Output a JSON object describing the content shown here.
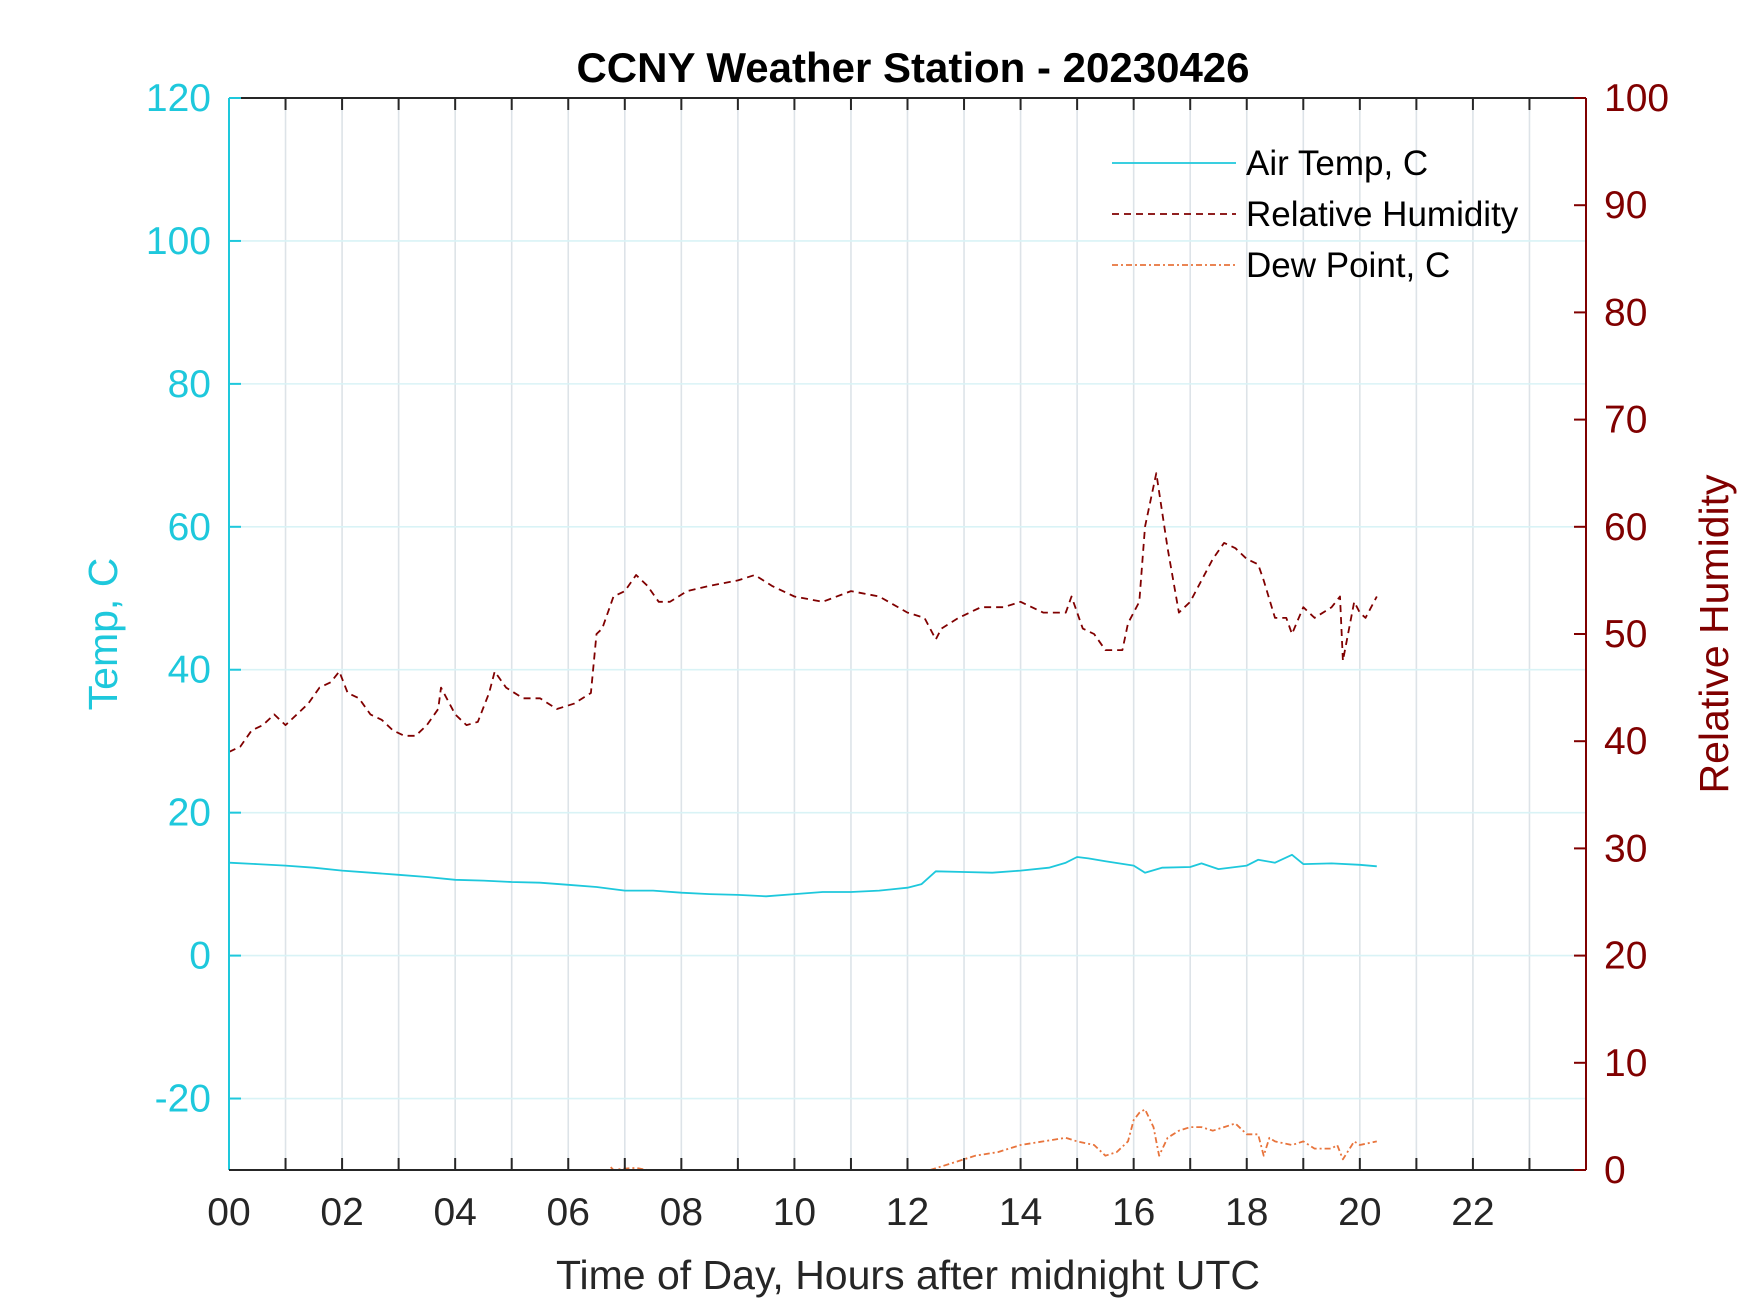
{
  "chart_data": {
    "type": "line",
    "title": "CCNY Weather Station - 20230426",
    "xlabel": "Time of Day, Hours after midnight UTC",
    "ylabel_left": "Temp, C",
    "ylabel_right": "Relative Humidity",
    "xlim": [
      0,
      24
    ],
    "ylim_left": [
      -30,
      120
    ],
    "ylim_right": [
      0,
      100
    ],
    "x_ticks": [
      0,
      2,
      4,
      6,
      8,
      10,
      12,
      14,
      16,
      18,
      20,
      22
    ],
    "x_tick_labels": [
      "00",
      "02",
      "04",
      "06",
      "08",
      "10",
      "12",
      "14",
      "16",
      "18",
      "20",
      "22"
    ],
    "y_left_ticks": [
      -20,
      0,
      20,
      40,
      60,
      80,
      100,
      120
    ],
    "y_left_tick_labels": [
      "-20",
      "0",
      "20",
      "40",
      "60",
      "80",
      "100",
      "120"
    ],
    "y_right_ticks": [
      0,
      10,
      20,
      30,
      40,
      50,
      60,
      70,
      80,
      90,
      100
    ],
    "y_right_tick_labels": [
      "0",
      "10",
      "20",
      "30",
      "40",
      "50",
      "60",
      "70",
      "80",
      "90",
      "100"
    ],
    "grid": true,
    "legend_position": "top-right",
    "colors": {
      "left_axis": "#1ec8dc",
      "right_axis": "#800000",
      "air_temp": "#1ec8dc",
      "humidity": "#800000",
      "dew_point": "#e8743c"
    },
    "series": [
      {
        "name": "Air Temp, C",
        "axis": "left",
        "style": "solid",
        "x": [
          0,
          0.5,
          1,
          1.5,
          2,
          2.5,
          3,
          3.5,
          4,
          4.5,
          5,
          5.5,
          6,
          6.5,
          7,
          7.5,
          8,
          8.5,
          9,
          9.5,
          10,
          10.5,
          11,
          11.5,
          12,
          12.25,
          12.5,
          13,
          13.5,
          14,
          14.5,
          14.8,
          15,
          15.2,
          15.5,
          16,
          16.2,
          16.5,
          17,
          17.2,
          17.5,
          18,
          18.2,
          18.5,
          18.8,
          19,
          19.5,
          20,
          20.3
        ],
        "values": [
          13,
          12.8,
          12.6,
          12.3,
          11.9,
          11.6,
          11.3,
          11,
          10.6,
          10.5,
          10.3,
          10.2,
          9.9,
          9.6,
          9.1,
          9.1,
          8.8,
          8.6,
          8.5,
          8.3,
          8.6,
          8.9,
          8.9,
          9.1,
          9.5,
          10,
          11.8,
          11.7,
          11.6,
          11.9,
          12.3,
          13,
          13.8,
          13.6,
          13.2,
          12.6,
          11.6,
          12.3,
          12.4,
          12.9,
          12.1,
          12.6,
          13.4,
          13,
          14.1,
          12.8,
          12.9,
          12.7,
          12.5
        ]
      },
      {
        "name": "Relative Humidity",
        "axis": "right",
        "style": "dashed",
        "x": [
          0,
          0.2,
          0.4,
          0.6,
          0.8,
          1,
          1.2,
          1.4,
          1.6,
          1.8,
          1.95,
          2.1,
          2.3,
          2.5,
          2.7,
          2.9,
          3.1,
          3.3,
          3.5,
          3.7,
          3.75,
          3.85,
          4,
          4.2,
          4.4,
          4.6,
          4.7,
          4.9,
          5.2,
          5.5,
          5.8,
          6.1,
          6.4,
          6.5,
          6.6,
          6.8,
          7,
          7.2,
          7.4,
          7.6,
          7.8,
          8.1,
          8.5,
          9,
          9.3,
          9.6,
          10,
          10.5,
          11,
          11.5,
          12,
          12.3,
          12.5,
          12.6,
          12.9,
          13.3,
          13.7,
          14,
          14.4,
          14.8,
          14.9,
          15.1,
          15.3,
          15.5,
          15.8,
          15.9,
          16.1,
          16.2,
          16.4,
          16.6,
          16.8,
          17,
          17.2,
          17.4,
          17.6,
          17.8,
          18,
          18.2,
          18.3,
          18.5,
          18.7,
          18.8,
          19,
          19.2,
          19.5,
          19.65,
          19.7,
          19.9,
          20,
          20.1,
          20.3
        ],
        "values": [
          39,
          39.5,
          41,
          41.5,
          42.5,
          41.5,
          42.5,
          43.5,
          45,
          45.5,
          46.5,
          44.5,
          44,
          42.5,
          42,
          41,
          40.5,
          40.5,
          41.5,
          43,
          45,
          44,
          42.5,
          41.5,
          41.8,
          44.5,
          46.5,
          45,
          44,
          44,
          43,
          43.5,
          44.5,
          50,
          50.5,
          53.5,
          54,
          55.5,
          54.5,
          53,
          53,
          54,
          54.5,
          55,
          55.5,
          54.5,
          53.5,
          53,
          54,
          53.5,
          52,
          51.5,
          49.5,
          50.5,
          51.5,
          52.5,
          52.5,
          53,
          52,
          52,
          53.5,
          50.5,
          50,
          48.5,
          48.5,
          51,
          53,
          60,
          65,
          58,
          52,
          53,
          55,
          57,
          58.5,
          58,
          57,
          56.5,
          55,
          51.5,
          51.5,
          50,
          52.5,
          51.5,
          52.5,
          53.5,
          47.5,
          53,
          52,
          51.5,
          53.5
        ]
      },
      {
        "name": "Dew Point, C",
        "axis": "left",
        "style": "dashdot",
        "x": [
          6.75,
          6.8,
          7.0,
          7.2,
          7.4,
          12.4,
          12.8,
          13.2,
          13.6,
          14,
          14.4,
          14.8,
          15,
          15.3,
          15.5,
          15.7,
          15.9,
          16,
          16.1,
          16.2,
          16.35,
          16.45,
          16.6,
          16.8,
          17,
          17.2,
          17.4,
          17.6,
          17.8,
          18,
          18.2,
          18.3,
          18.4,
          18.5,
          18.8,
          19,
          19.2,
          19.5,
          19.6,
          19.7,
          19.9,
          20,
          20.3
        ],
        "values": [
          -29.6,
          -30,
          -29.8,
          -29.7,
          -30,
          -30,
          -29,
          -28,
          -27.5,
          -26.5,
          -26,
          -25.5,
          -26,
          -26.5,
          -28,
          -27.5,
          -26,
          -23,
          -22,
          -21.5,
          -24,
          -28,
          -25.5,
          -24.5,
          -24,
          -24,
          -24.5,
          -24,
          -23.5,
          -25,
          -25,
          -28,
          -25.5,
          -26,
          -26.5,
          -26,
          -27,
          -27,
          -26.5,
          -28.5,
          -26,
          -26.5,
          -26
        ]
      }
    ]
  }
}
